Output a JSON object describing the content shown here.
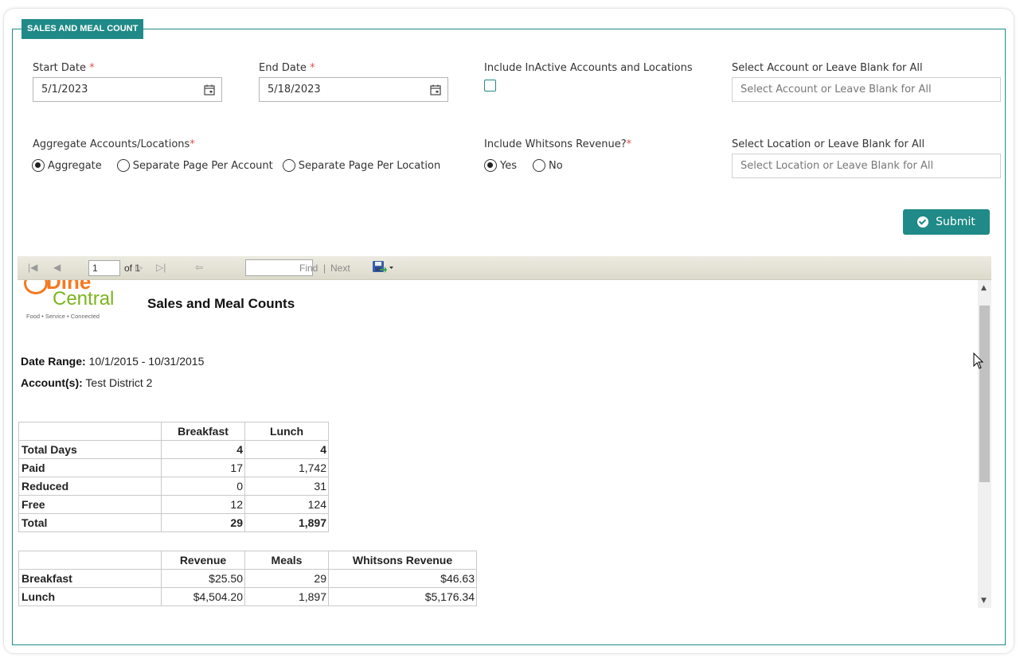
{
  "form": {
    "legend": "SALES AND MEAL COUNT",
    "start_date": {
      "label": "Start Date",
      "required": "*",
      "value": "5/1/2023"
    },
    "end_date": {
      "label": "End Date",
      "required": "*",
      "value": "5/18/2023"
    },
    "include_inactive": {
      "label": "Include InActive Accounts and Locations",
      "checked": false
    },
    "account_select": {
      "label": "Select Account or Leave Blank for All",
      "placeholder": "Select Account or Leave Blank for All"
    },
    "aggregate": {
      "label": "Aggregate Accounts/Locations",
      "required": "*",
      "options": [
        "Aggregate",
        "Separate Page Per Account",
        "Separate Page Per Location"
      ],
      "selected": "Aggregate"
    },
    "whitsons_revenue": {
      "label": "Include Whitsons Revenue?",
      "required": "*",
      "options": [
        "Yes",
        "No"
      ],
      "selected": "Yes"
    },
    "location_select": {
      "label": "Select Location or Leave Blank for All",
      "placeholder": "Select Location or Leave Blank for All"
    },
    "submit_label": "Submit"
  },
  "viewer_toolbar": {
    "page_value": "1",
    "of_label": "of 1",
    "find_label": "Find",
    "separator": "|",
    "next_label": "Next"
  },
  "report": {
    "logo": {
      "dine": "Dine",
      "central": "Central",
      "tagline": "Food  •  Service  •  Connected"
    },
    "title": "Sales and Meal Counts",
    "date_range_label": "Date Range:",
    "date_range_value": "10/1/2015 - 10/31/2015",
    "accounts_label": "Account(s):",
    "accounts_value": "Test District 2",
    "counts_table": {
      "columns": [
        "",
        "Breakfast",
        "Lunch"
      ],
      "rows": [
        {
          "label": "Total Days",
          "breakfast": "4",
          "lunch": "4"
        },
        {
          "label": "Paid",
          "breakfast": "17",
          "lunch": "1,742"
        },
        {
          "label": "Reduced",
          "breakfast": "0",
          "lunch": "31"
        },
        {
          "label": "Free",
          "breakfast": "12",
          "lunch": "124"
        },
        {
          "label": "Total",
          "breakfast": "29",
          "lunch": "1,897"
        }
      ]
    },
    "revenue_table": {
      "columns": [
        "",
        "Revenue",
        "Meals",
        "Whitsons Revenue"
      ],
      "rows": [
        {
          "label": "Breakfast",
          "revenue": "$25.50",
          "meals": "29",
          "whitsons": "$46.63"
        },
        {
          "label": "Lunch",
          "revenue": "$4,504.20",
          "meals": "1,897",
          "whitsons": "$5,176.34"
        }
      ]
    }
  },
  "colors": {
    "accent": "#1f8a87",
    "required": "#d9534f",
    "logo_orange": "#f47920",
    "logo_green": "#7ab51d"
  }
}
